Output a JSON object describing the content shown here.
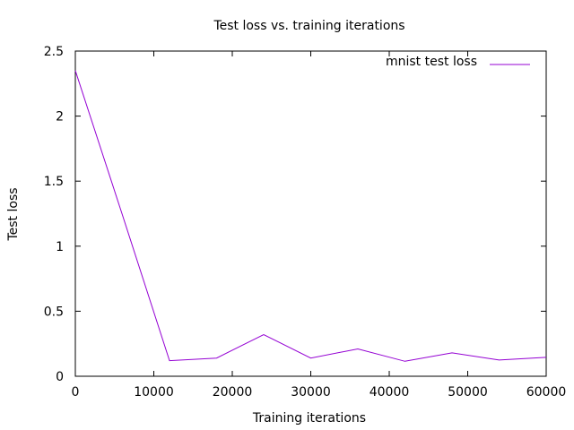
{
  "chart_data": {
    "type": "line",
    "title": "Test loss vs. training iterations",
    "xlabel": "Training iterations",
    "ylabel": "Test loss",
    "xlim": [
      0,
      60000
    ],
    "ylim": [
      0,
      2.5
    ],
    "xticks": [
      0,
      10000,
      20000,
      30000,
      40000,
      50000,
      60000
    ],
    "xtick_labels": [
      "0",
      "10000",
      "20000",
      "30000",
      "40000",
      "50000",
      "60000"
    ],
    "yticks": [
      0,
      0.5,
      1,
      1.5,
      2,
      2.5
    ],
    "ytick_labels": [
      "0",
      "0.5",
      "1",
      "1.5",
      "2",
      "2.5"
    ],
    "grid": false,
    "legend_position": "top-right",
    "series": [
      {
        "name": "mnist test loss",
        "color": "#9400d3",
        "x": [
          0,
          6000,
          12000,
          18000,
          24000,
          30000,
          36000,
          42000,
          48000,
          54000,
          60000
        ],
        "y": [
          2.35,
          1.24,
          0.12,
          0.14,
          0.32,
          0.14,
          0.21,
          0.115,
          0.18,
          0.125,
          0.145
        ]
      }
    ]
  }
}
